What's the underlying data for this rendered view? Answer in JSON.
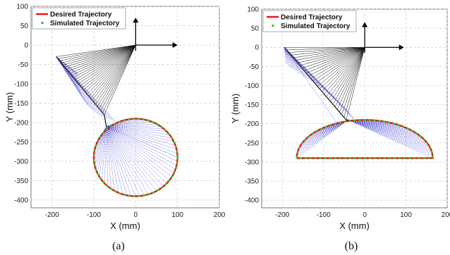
{
  "chart_data": [
    {
      "type": "line",
      "panel_label": "(a)",
      "xlabel": "X (mm)",
      "ylabel": "Y (mm)",
      "xlim": [
        -250,
        200
      ],
      "ylim": [
        -420,
        100
      ],
      "xticks": [
        -200,
        -100,
        0,
        100,
        200
      ],
      "yticks": [
        100,
        50,
        0,
        -50,
        -100,
        -150,
        -200,
        -250,
        -300,
        -350,
        -400
      ],
      "grid": true,
      "legend_position": "top-left",
      "series": [
        {
          "name": "Desired Trajectory",
          "color": "#e8161b",
          "style": "solid",
          "shape": "circle",
          "center": [
            0,
            -290
          ],
          "radius": 100
        },
        {
          "name": "Simulated Trajectory",
          "color": "#33c72a",
          "style": "dotted",
          "shape": "circle",
          "center": [
            0,
            -290
          ],
          "radius": 100
        }
      ],
      "linkage": {
        "base": [
          0,
          0
        ],
        "pivot": [
          -190,
          -30
        ],
        "elbow": [
          -75,
          -180
        ],
        "joint": [
          -70,
          -210
        ],
        "link_color": "#2a2ad6",
        "arm_color": "#111111"
      },
      "frame_axes": {
        "origin": [
          0,
          0
        ],
        "x_end": [
          90,
          0
        ],
        "y_end": [
          0,
          60
        ]
      }
    },
    {
      "type": "line",
      "panel_label": "(b)",
      "xlabel": "X (mm)",
      "ylabel": "Y (mm)",
      "xlim": [
        -250,
        200
      ],
      "ylim": [
        -420,
        100
      ],
      "xticks": [
        -200,
        -100,
        0,
        100,
        200
      ],
      "yticks": [
        100,
        50,
        0,
        -50,
        -100,
        -150,
        -200,
        -250,
        -300,
        -350,
        -400
      ],
      "grid": true,
      "legend_position": "top-left",
      "series": [
        {
          "name": "Desired Trajectory",
          "color": "#e8161b",
          "style": "solid",
          "shape": "half-ellipse",
          "center": [
            0,
            -290
          ],
          "semi_x": 165,
          "semi_y": 100
        },
        {
          "name": "Simulated Trajectory",
          "color": "#33c72a",
          "style": "dotted",
          "shape": "half-ellipse",
          "center": [
            0,
            -290
          ],
          "semi_x": 165,
          "semi_y": 100
        }
      ],
      "linkage": {
        "base": [
          0,
          0
        ],
        "pivot": [
          -195,
          0
        ],
        "elbow": [
          -45,
          -190
        ],
        "joint": [
          -40,
          -190
        ],
        "link_color": "#2a2ad6",
        "arm_color": "#111111"
      },
      "frame_axes": {
        "origin": [
          0,
          0
        ],
        "x_end": [
          85,
          0
        ],
        "y_end": [
          0,
          55
        ]
      }
    }
  ]
}
